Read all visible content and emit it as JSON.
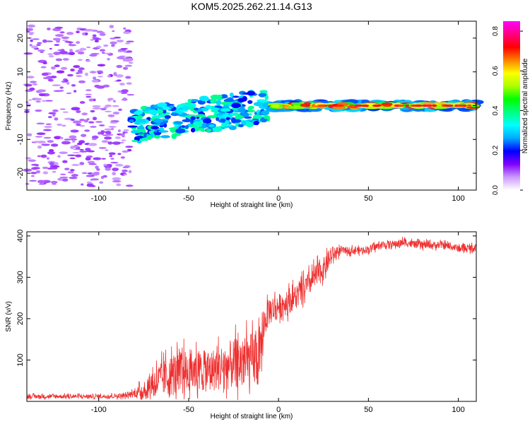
{
  "chart_data": [
    {
      "type": "heatmap",
      "title": "KOM5.2025.262.21.14.G13",
      "xlabel": "Height of straight line (km)",
      "ylabel": "Frequency (Hz)",
      "xlim": [
        -140,
        110
      ],
      "ylim": [
        -25,
        25
      ],
      "xticks": [
        -100,
        -50,
        0,
        50,
        100
      ],
      "yticks": [
        -20,
        -10,
        0,
        10,
        20
      ],
      "xtick_labels": [
        "-100",
        "-50",
        "0",
        "50",
        "100"
      ],
      "ytick_labels": [
        "-20",
        "-10",
        "0",
        "10",
        "20"
      ],
      "colorbar": {
        "label": "Normalized spectral amplitude",
        "range": [
          0,
          0.85
        ],
        "ticks": [
          0.0,
          0.2,
          0.4,
          0.6,
          0.8
        ],
        "tick_labels": [
          "0.0",
          "0.2",
          "0.4",
          "0.6",
          "0.8"
        ],
        "colors": [
          "#ffffff",
          "#cc99ff",
          "#8000ff",
          "#0000ff",
          "#00aaff",
          "#00ffff",
          "#00ff80",
          "#00ff00",
          "#aaff00",
          "#ffff00",
          "#ff8000",
          "#ff0000",
          "#ff0080",
          "#ff00ff"
        ]
      },
      "regions": [
        {
          "name": "noise",
          "x_range": [
            -140,
            -82
          ],
          "freq_range": [
            -24,
            24
          ],
          "amplitude": 0.08
        },
        {
          "name": "onset",
          "x_range": [
            -82,
            -5
          ],
          "freq_center": [
            -6,
            0
          ],
          "amplitude": 0.2
        },
        {
          "name": "signal",
          "x_range": [
            -5,
            110
          ],
          "freq_center": 0,
          "amplitude": 0.75
        }
      ]
    },
    {
      "type": "line",
      "xlabel": "Height of straight line (km)",
      "ylabel": "SNR (v/v)",
      "xlim": [
        -140,
        110
      ],
      "ylim": [
        0,
        410
      ],
      "xticks": [
        -100,
        -50,
        0,
        50,
        100
      ],
      "yticks": [
        100,
        200,
        300,
        400
      ],
      "xtick_labels": [
        "-100",
        "-50",
        "0",
        "50",
        "100"
      ],
      "ytick_labels": [
        "100",
        "200",
        "300",
        "400"
      ],
      "series": [
        {
          "name": "SNR",
          "color": "#ee3030",
          "x": [
            -140,
            -120,
            -100,
            -85,
            -80,
            -75,
            -70,
            -65,
            -60,
            -55,
            -50,
            -45,
            -40,
            -35,
            -30,
            -25,
            -20,
            -15,
            -10,
            -8,
            -5,
            0,
            5,
            10,
            15,
            20,
            25,
            30,
            35,
            40,
            45,
            50,
            55,
            60,
            65,
            70,
            75,
            80,
            85,
            90,
            95,
            100,
            105,
            110
          ],
          "values": [
            12,
            12,
            12,
            14,
            20,
            28,
            45,
            55,
            62,
            68,
            72,
            75,
            72,
            78,
            85,
            90,
            95,
            100,
            100,
            190,
            220,
            230,
            240,
            255,
            275,
            300,
            320,
            355,
            365,
            365,
            365,
            368,
            375,
            380,
            380,
            385,
            380,
            378,
            378,
            378,
            375,
            370,
            370,
            372
          ],
          "spread": [
            10,
            10,
            10,
            12,
            20,
            45,
            70,
            85,
            100,
            105,
            110,
            105,
            100,
            105,
            115,
            120,
            125,
            130,
            140,
            70,
            70,
            60,
            60,
            60,
            60,
            60,
            55,
            40,
            18,
            18,
            18,
            18,
            18,
            18,
            18,
            20,
            18,
            18,
            18,
            18,
            18,
            18,
            18,
            18
          ]
        }
      ]
    }
  ]
}
